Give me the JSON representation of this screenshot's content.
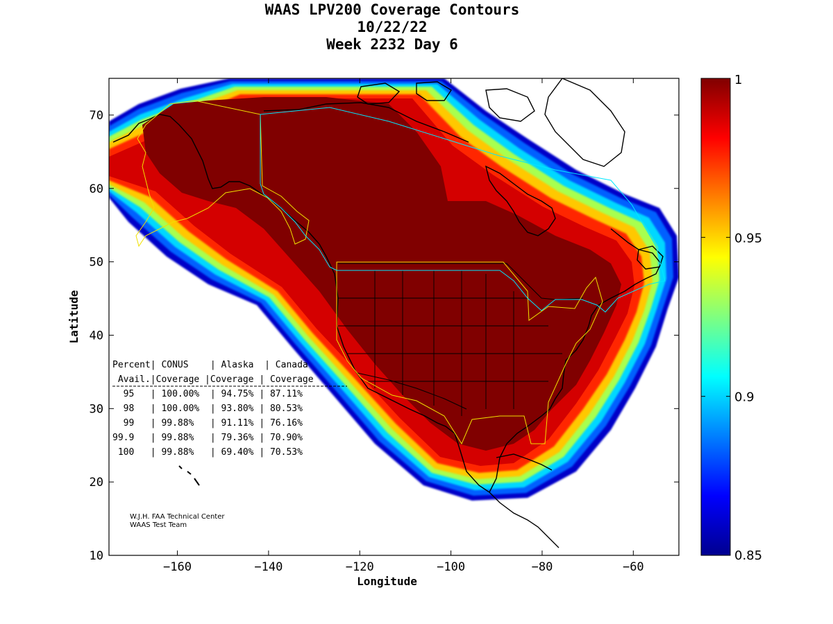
{
  "title": [
    "WAAS LPV200 Coverage Contours",
    "10/22/22",
    "Week 2232 Day 6"
  ],
  "xlabel": "Longitude",
  "ylabel": "Latitude",
  "colorbar": {
    "ticks": [
      "1",
      "0.95",
      "0.9",
      "0.85"
    ],
    "values": [
      1,
      0.95,
      0.9,
      0.85
    ]
  },
  "credit": [
    "W.J.H. FAA Technical Center",
    "WAAS Test Team"
  ],
  "table": {
    "header1": "Percent| CONUS    | Alaska  | Canada",
    "header2": " Avail.|Coverage |Coverage | Coverage",
    "rows": [
      "  95   | 100.00%  | 94.75% | 87.11%",
      "  98   | 100.00%  | 93.80% | 80.53%",
      "  99   | 99.88%   | 91.11% | 76.16%",
      "99.9   | 99.88%   | 79.36% | 70.90%",
      " 100   | 99.88%   | 69.40% | 70.53%"
    ]
  },
  "chart_data": {
    "type": "heatmap",
    "title": "WAAS LPV200 Coverage Contours",
    "xlabel": "Longitude",
    "ylabel": "Latitude",
    "xlim": [
      -175,
      -50
    ],
    "ylim": [
      10,
      75
    ],
    "xticks": [
      -160,
      -140,
      -120,
      -100,
      -80,
      -60
    ],
    "yticks": [
      10,
      20,
      30,
      40,
      50,
      60,
      70
    ],
    "colormap": "jet",
    "clim": [
      0.85,
      1
    ],
    "colorbar_ticks": [
      1,
      0.95,
      0.9,
      0.85
    ],
    "series": [
      {
        "name": "Percent Availability",
        "values": [
          95,
          98,
          99,
          99.9,
          100
        ]
      },
      {
        "name": "CONUS Coverage",
        "values": [
          100.0,
          100.0,
          99.88,
          99.88,
          99.88
        ]
      },
      {
        "name": "Alaska Coverage",
        "values": [
          94.75,
          93.8,
          91.11,
          79.36,
          69.4
        ]
      },
      {
        "name": "Canada Coverage",
        "values": [
          87.11,
          80.53,
          76.16,
          70.9,
          70.53
        ]
      }
    ]
  }
}
